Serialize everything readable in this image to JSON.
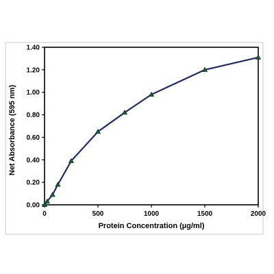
{
  "colors": {
    "line": "#1f2a6e",
    "marker": "#1a5e3a",
    "marker_edge": "#0d2b1a",
    "axis": "#000000",
    "outer_frame": "#c8c8c8"
  },
  "chart_data": {
    "type": "line",
    "title": "",
    "xlabel": "Protein Concentration  (µg/ml)",
    "ylabel": "Net Absorbance (595 nm)",
    "xlim": [
      0,
      2000
    ],
    "ylim": [
      0,
      1.4
    ],
    "x_ticks": [
      0,
      500,
      1000,
      1500,
      2000
    ],
    "x_tick_labels": [
      "0",
      "500",
      "1000",
      "1500",
      "2000"
    ],
    "y_ticks": [
      0,
      0.2,
      0.4,
      0.6,
      0.8,
      1.0,
      1.2,
      1.4
    ],
    "y_tick_labels": [
      "0.00",
      "0.20",
      "0.40",
      "0.60",
      "0.80",
      "1.00",
      "1.20",
      "1.40"
    ],
    "grid": false,
    "legend": "none",
    "marker": "triangle",
    "series": [
      {
        "x": [
          0,
          25,
          75,
          125,
          250,
          500,
          750,
          1000,
          1500,
          2000
        ],
        "y": [
          0.0,
          0.03,
          0.09,
          0.18,
          0.39,
          0.65,
          0.82,
          0.98,
          1.2,
          1.31
        ]
      }
    ]
  }
}
